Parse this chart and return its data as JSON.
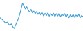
{
  "values": [
    -1.0,
    -1.5,
    -2.0,
    -2.8,
    -3.5,
    -3.0,
    -3.8,
    -4.5,
    -3.8,
    -5.0,
    -5.8,
    -4.5,
    -3.0,
    -1.5,
    0.5,
    3.0,
    5.5,
    4.5,
    3.0,
    4.0,
    2.5,
    1.5,
    2.8,
    1.2,
    2.0,
    0.8,
    1.8,
    0.5,
    1.5,
    0.2,
    1.2,
    -0.2,
    1.0,
    0.0,
    1.2,
    -0.3,
    0.8,
    0.0,
    1.0,
    -0.5,
    0.8,
    -0.2,
    1.0,
    -0.5,
    0.5,
    0.0,
    0.8,
    -0.8,
    0.5,
    -1.0,
    0.3,
    -0.5,
    0.5,
    -0.8,
    0.2,
    -0.5,
    0.5,
    -1.0,
    0.0,
    -0.5
  ],
  "line_color": "#3d9fd4",
  "linewidth": 0.8,
  "background_color": "#ffffff",
  "ylim": [
    -7,
    7
  ],
  "figsize": [
    1.2,
    0.45
  ],
  "dpi": 100
}
